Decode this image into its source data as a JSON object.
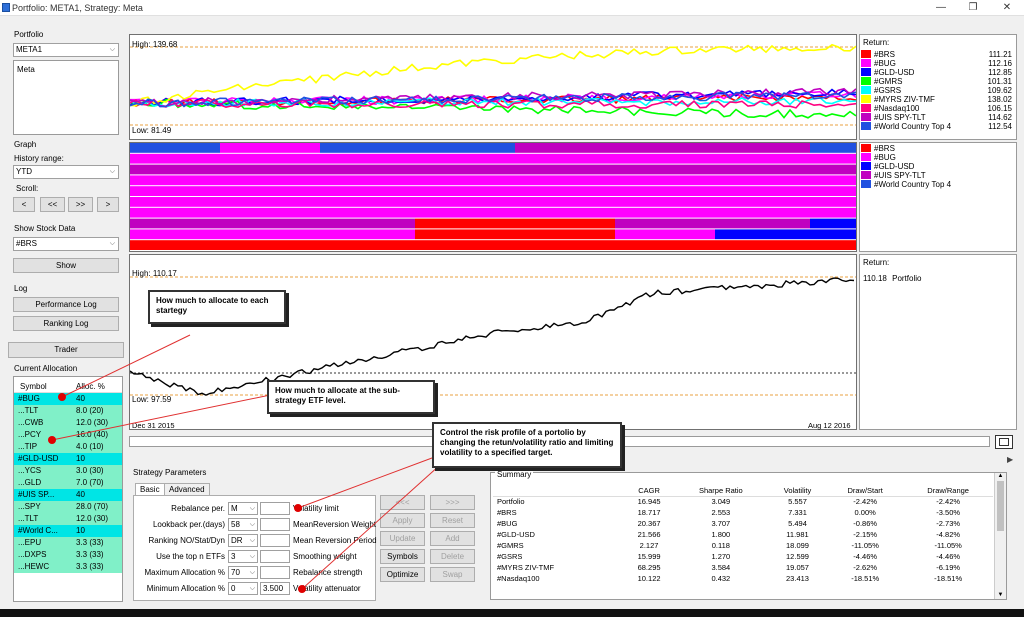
{
  "window": {
    "title": "Portfolio: META1, Strategy: Meta"
  },
  "left": {
    "portfolio_group": "Portfolio",
    "portfolio_value": "META1",
    "strategy_list": [
      "Meta"
    ],
    "graph_group": "Graph",
    "history_label": "History range:",
    "history_value": "YTD",
    "scroll_label": "Scroll:",
    "scroll_buttons": [
      "<",
      "<<",
      ">>",
      ">"
    ],
    "show_stock_label": "Show Stock Data",
    "stock_value": "#BRS",
    "show_button": "Show",
    "log_group": "Log",
    "perf_log_button": "Performance Log",
    "ranking_log_button": "Ranking Log",
    "trader_button": "Trader",
    "current_alloc_label": "Current Allocation",
    "alloc_headers": [
      "Symbol",
      "Alloc. %"
    ],
    "alloc_rows": [
      {
        "sym": "#BUG",
        "val": "40",
        "top": true
      },
      {
        "sym": "...TLT",
        "val": "8.0 (20)",
        "top": false
      },
      {
        "sym": "...CWB",
        "val": "12.0 (30)",
        "top": false
      },
      {
        "sym": "...PCY",
        "val": "16.0 (40)",
        "top": false
      },
      {
        "sym": "...TIP",
        "val": "4.0 (10)",
        "top": false
      },
      {
        "sym": "#GLD-USD",
        "val": "10",
        "top": true
      },
      {
        "sym": "...YCS",
        "val": "3.0 (30)",
        "top": false
      },
      {
        "sym": "...GLD",
        "val": "7.0 (70)",
        "top": false
      },
      {
        "sym": "#UIS SP...",
        "val": "40",
        "top": true
      },
      {
        "sym": "...SPY",
        "val": "28.0 (70)",
        "top": false
      },
      {
        "sym": "...TLT",
        "val": "12.0 (30)",
        "top": false
      },
      {
        "sym": "#World C...",
        "val": "10",
        "top": true
      },
      {
        "sym": "...EPU",
        "val": "3.3 (33)",
        "top": false
      },
      {
        "sym": "...DXPS",
        "val": "3.3 (33)",
        "top": false
      },
      {
        "sym": "...HEWC",
        "val": "3.3 (33)",
        "top": false
      }
    ]
  },
  "top_chart": {
    "high_label": "High: 139.68",
    "low_label": "Low: 81.49",
    "return_label": "Return:",
    "legend": [
      {
        "name": "#BRS",
        "value": "111.21",
        "color": "#ff0000"
      },
      {
        "name": "#BUG",
        "value": "112.16",
        "color": "#ff00ff"
      },
      {
        "name": "#GLD-USD",
        "value": "112.85",
        "color": "#0000ff"
      },
      {
        "name": "#GMRS",
        "value": "101.31",
        "color": "#00ff00"
      },
      {
        "name": "#GSRS",
        "value": "109.62",
        "color": "#00ffff"
      },
      {
        "name": "#MYRS ZIV-TMF",
        "value": "138.02",
        "color": "#ffff00"
      },
      {
        "name": "#Nasdaq100",
        "value": "106.15",
        "color": "#ff0080"
      },
      {
        "name": "#UIS SPY-TLT",
        "value": "114.62",
        "color": "#c000c0"
      },
      {
        "name": "#World Country Top 4",
        "value": "112.54",
        "color": "#2050e0"
      }
    ]
  },
  "mid_chart": {
    "legend": [
      {
        "name": "#BRS",
        "color": "#ff0000"
      },
      {
        "name": "#BUG",
        "color": "#ff00ff"
      },
      {
        "name": "#GLD-USD",
        "color": "#0000ff"
      },
      {
        "name": "#UIS SPY-TLT",
        "color": "#c000c0"
      },
      {
        "name": "#World Country Top 4",
        "color": "#2050e0"
      }
    ]
  },
  "bottom_chart": {
    "high_label": "High: 110.17",
    "low_label": "Low: 97.59",
    "date_start": "Dec 31 2015",
    "date_end": "Aug 12 2016",
    "return_label": "Return:",
    "return_value": "110.18",
    "return_name": "Portfolio"
  },
  "callouts": {
    "c1": "How much to allocate to each startegy",
    "c2": "How much to allocate at the sub-strategy ETF level.",
    "c3": "Control the risk profile of a portolio by changing the retun/volatility ratio and limiting volatility to a specified target."
  },
  "params": {
    "group": "Strategy Parameters",
    "tabs": [
      "Basic",
      "Advanced"
    ],
    "rows": [
      {
        "label": "Rebalance per.",
        "value": "M",
        "right_value": "",
        "right_label": "Volatility limit"
      },
      {
        "label": "Lookback per.(days)",
        "value": "58",
        "right_value": "",
        "right_label": "MeanReversion Weight"
      },
      {
        "label": "Ranking NO/Stat/Dyn",
        "value": "DR",
        "right_value": "",
        "right_label": "Mean Reversion Period"
      },
      {
        "label": "Use the top n ETFs",
        "value": "3",
        "right_value": "",
        "right_label": "Smoothing weight"
      },
      {
        "label": "Maximum Allocation %",
        "value": "70",
        "right_value": "",
        "right_label": "Rebalance strength"
      },
      {
        "label": "Minimum Allocation %",
        "value": "0",
        "right_value": "3.500",
        "right_label": "Volatility attenuator"
      }
    ],
    "buttons": [
      "<<<",
      ">>>",
      "Apply",
      "Reset",
      "Update",
      "Add",
      "Symbols",
      "Delete",
      "Optimize",
      "Swap"
    ]
  },
  "summary": {
    "title": "Summary",
    "headers": [
      "",
      "CAGR",
      "Sharpe Ratio",
      "Volatility",
      "Draw/Start",
      "Draw/Range"
    ],
    "rows": [
      [
        "Portfolio",
        "16.945",
        "3.049",
        "5.557",
        "-2.42%",
        "-2.42%"
      ],
      [
        "#BRS",
        "18.717",
        "2.553",
        "7.331",
        "0.00%",
        "-3.50%"
      ],
      [
        "#BUG",
        "20.367",
        "3.707",
        "5.494",
        "-0.86%",
        "-2.73%"
      ],
      [
        "#GLD-USD",
        "21.566",
        "1.800",
        "11.981",
        "-2.15%",
        "-4.82%"
      ],
      [
        "#GMRS",
        "2.127",
        "0.118",
        "18.099",
        "-11.05%",
        "-11.05%"
      ],
      [
        "#GSRS",
        "15.999",
        "1.270",
        "12.599",
        "-4.46%",
        "-4.46%"
      ],
      [
        "#MYRS ZIV-TMF",
        "68.295",
        "3.584",
        "19.057",
        "-2.62%",
        "-6.19%"
      ],
      [
        "#Nasdaq100",
        "10.122",
        "0.432",
        "23.413",
        "-18.51%",
        "-18.51%"
      ]
    ]
  }
}
